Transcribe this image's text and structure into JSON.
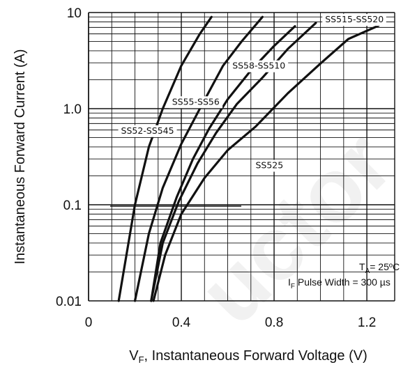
{
  "chart_data": {
    "type": "line",
    "title": "",
    "xlabel_main": "V",
    "xlabel_sub": "F",
    "xlabel_rest": ", Instantaneous  Forward Voltage (V)",
    "ylabel": "Instantaneous  Forward Current (A)",
    "x_ticks": [
      "0",
      "0.4",
      "0.8",
      "1.2"
    ],
    "x_tick_values": [
      0,
      0.4,
      0.8,
      1.2
    ],
    "y_ticks": [
      "0.01",
      "0.1",
      "1.0",
      "10"
    ],
    "y_tick_values": [
      0.01,
      0.1,
      1,
      10
    ],
    "xlim": [
      0,
      1.32
    ],
    "ylim": [
      0.01,
      10
    ],
    "y_scale": "log",
    "grid": true,
    "watermark": "uctor",
    "series": [
      {
        "name": "SS52-SS545",
        "x": [
          0.13,
          0.2,
          0.26,
          0.32,
          0.4,
          0.48,
          0.53
        ],
        "y": [
          0.01,
          0.1,
          0.4,
          1.0,
          2.8,
          6.0,
          9.0
        ]
      },
      {
        "name": "SS55-SS56",
        "x": [
          0.2,
          0.26,
          0.32,
          0.4,
          0.48,
          0.58,
          0.66,
          0.75
        ],
        "y": [
          0.01,
          0.05,
          0.15,
          0.43,
          1.0,
          2.8,
          5.0,
          9.0
        ]
      },
      {
        "name": "SS58-SS510",
        "x": [
          0.27,
          0.31,
          0.38,
          0.45,
          0.52,
          0.6,
          0.7,
          0.8,
          0.89
        ],
        "y": [
          0.01,
          0.04,
          0.12,
          0.3,
          0.62,
          1.25,
          2.5,
          4.5,
          7.2
        ]
      },
      {
        "name": "SS515-SS520",
        "x": [
          0.27,
          0.32,
          0.39,
          0.47,
          0.55,
          0.64,
          0.75,
          0.86,
          0.98
        ],
        "y": [
          0.01,
          0.04,
          0.11,
          0.27,
          0.56,
          1.12,
          2.1,
          4.2,
          7.8
        ]
      },
      {
        "name": "SS525",
        "x": [
          0.28,
          0.33,
          0.4,
          0.5,
          0.6,
          0.72,
          0.86,
          1.0,
          1.12,
          1.25
        ],
        "y": [
          0.01,
          0.03,
          0.08,
          0.19,
          0.37,
          0.65,
          1.45,
          2.95,
          5.3,
          7.3
        ]
      }
    ],
    "series_label_anchor": [
      {
        "x": 0.14,
        "y": 0.55
      },
      {
        "x": 0.36,
        "y": 1.1
      },
      {
        "x": 0.62,
        "y": 2.6
      },
      {
        "x": 1.02,
        "y": 7.9
      },
      {
        "x": 0.72,
        "y": 0.24
      }
    ],
    "ambient_temp": {
      "main": "T",
      "sub": "A",
      "rest": "= 25ºC"
    },
    "pulse_width": {
      "main": "I",
      "sub": "F",
      "rest": " Pulse Width = 300 µs"
    }
  }
}
